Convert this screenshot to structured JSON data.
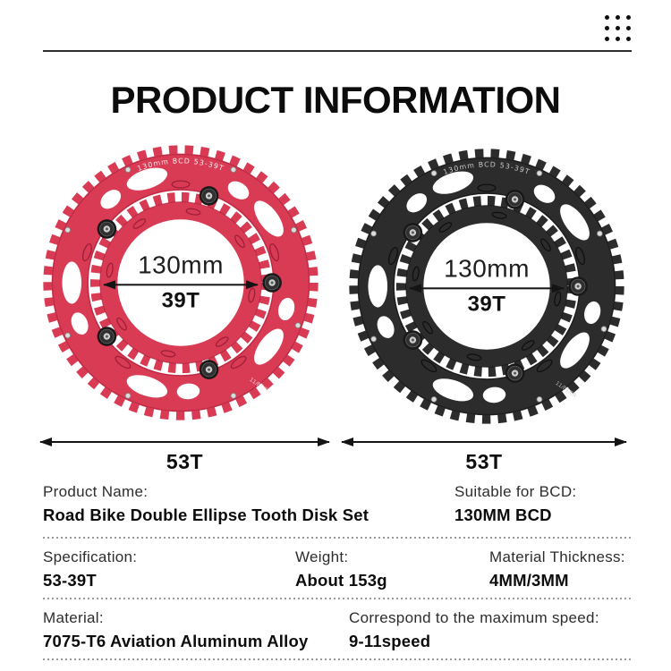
{
  "title": "PRODUCT INFORMATION",
  "icons": {
    "top_right": "grid-dots-icon"
  },
  "rings": [
    {
      "name": "red chainring",
      "engraving": "130mm BCD 53-39T",
      "serial": "11/B1/6R",
      "bcd_label": "130mm",
      "inner_teeth": "39T",
      "outer_teeth": "53T",
      "color": "#d93a54",
      "color_dark": "#971c34",
      "engrave_color": "#ffe9ec"
    },
    {
      "name": "black chainring",
      "engraving": "130mm BCD 53-39T",
      "serial": "11/B1/6R",
      "bcd_label": "130mm",
      "inner_teeth": "39T",
      "outer_teeth": "53T",
      "color": "#2c2c2c",
      "color_dark": "#0c0c0c",
      "engrave_color": "#c9c9c9"
    }
  ],
  "specs": {
    "product_name": {
      "label": "Product Name:",
      "value": "Road Bike Double Ellipse Tooth Disk Set"
    },
    "bcd": {
      "label": "Suitable for BCD:",
      "value": "130MM BCD"
    },
    "specification": {
      "label": "Specification:",
      "value": "53-39T"
    },
    "weight": {
      "label": "Weight:",
      "value": "About 153g"
    },
    "thickness": {
      "label": "Material Thickness:",
      "value": "4MM/3MM"
    },
    "material": {
      "label": "Material:",
      "value": "7075-T6 Aviation Aluminum Alloy"
    },
    "speed": {
      "label": "Correspond to the maximum speed:",
      "value": "9-11speed"
    }
  }
}
